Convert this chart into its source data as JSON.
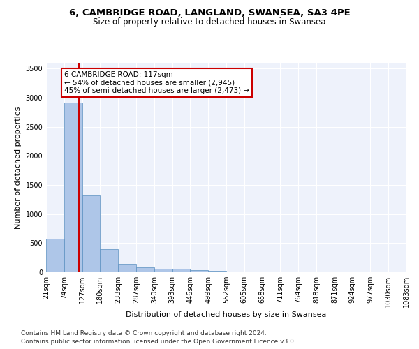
{
  "title1": "6, CAMBRIDGE ROAD, LANGLAND, SWANSEA, SA3 4PE",
  "title2": "Size of property relative to detached houses in Swansea",
  "xlabel": "Distribution of detached houses by size in Swansea",
  "ylabel": "Number of detached properties",
  "footnote1": "Contains HM Land Registry data © Crown copyright and database right 2024.",
  "footnote2": "Contains public sector information licensed under the Open Government Licence v3.0.",
  "bin_edges": [
    21,
    74,
    127,
    180,
    233,
    287,
    340,
    393,
    446,
    499,
    552,
    605,
    658,
    711,
    764,
    818,
    871,
    924,
    977,
    1030,
    1083
  ],
  "bar_heights": [
    580,
    2920,
    1320,
    400,
    150,
    80,
    60,
    55,
    40,
    30,
    5,
    2,
    1,
    1,
    0,
    0,
    0,
    0,
    0,
    0
  ],
  "bar_color": "#aec6e8",
  "bar_edge_color": "#5a8fc0",
  "property_size": 117,
  "vline_color": "#cc0000",
  "annotation_line1": "6 CAMBRIDGE ROAD: 117sqm",
  "annotation_line2": "← 54% of detached houses are smaller (2,945)",
  "annotation_line3": "45% of semi-detached houses are larger (2,473) →",
  "annotation_box_color": "white",
  "annotation_box_edge": "#cc0000",
  "ylim": [
    0,
    3600
  ],
  "yticks": [
    0,
    500,
    1000,
    1500,
    2000,
    2500,
    3000,
    3500
  ],
  "background_color": "#eef2fb",
  "grid_color": "white",
  "title1_fontsize": 9.5,
  "title2_fontsize": 8.5,
  "xlabel_fontsize": 8,
  "ylabel_fontsize": 8,
  "tick_fontsize": 7,
  "footnote_fontsize": 6.5,
  "annotation_fontsize": 7.5
}
